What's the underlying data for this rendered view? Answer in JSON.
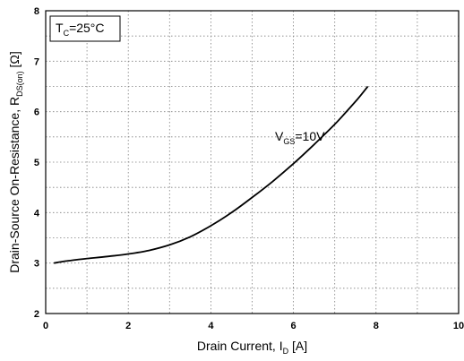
{
  "chart_data": {
    "type": "line",
    "xlabel": {
      "main": "Drain Current, I",
      "sub": "D",
      "unit": " [A]"
    },
    "ylabel": {
      "main": "Drain-Source On-Resistance, R",
      "sub": "DS(on)",
      "unit": " [Ω]"
    },
    "xlim": [
      0,
      10
    ],
    "ylim": [
      2,
      8
    ],
    "x_ticks": [
      "0",
      "2",
      "4",
      "6",
      "8",
      "10"
    ],
    "y_ticks": [
      "2",
      "3",
      "4",
      "5",
      "6",
      "7",
      "8"
    ],
    "grid": true,
    "condition_box": {
      "main": "T",
      "sub": "C",
      "rest": "=25°C"
    },
    "series": [
      {
        "label": {
          "main": "V",
          "sub": "GS",
          "rest": "=10V"
        },
        "x": [
          0.2,
          0.5,
          1.0,
          1.5,
          2.0,
          2.5,
          3.0,
          3.5,
          4.0,
          4.5,
          5.0,
          5.5,
          6.0,
          6.5,
          7.0,
          7.5,
          7.8
        ],
        "y": [
          3.0,
          3.04,
          3.09,
          3.13,
          3.18,
          3.25,
          3.36,
          3.52,
          3.74,
          4.0,
          4.3,
          4.62,
          4.97,
          5.35,
          5.75,
          6.2,
          6.5
        ]
      }
    ]
  }
}
